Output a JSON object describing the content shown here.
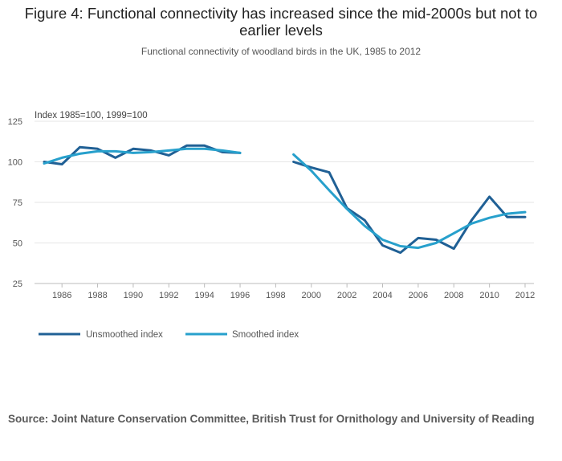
{
  "title": "Figure 4: Functional connectivity has increased since the mid-2000s but not to earlier levels",
  "subtitle": "Functional connectivity of woodland birds in the UK, 1985 to 2012",
  "source": "Source: Joint Nature Conservation Committee, British Trust for Ornithology and University of Reading",
  "colors": {
    "unsmoothed": "#206095",
    "smoothed": "#27A0CC",
    "grid": "#e6e6e6",
    "axis": "#bbbbbb"
  },
  "chart_data": {
    "type": "line",
    "ylabel": "Index 1985=100, 1999=100",
    "xlabel": "",
    "xlim": [
      1985,
      2012
    ],
    "ylim": [
      25,
      125
    ],
    "yticks": [
      25,
      50,
      75,
      100,
      125
    ],
    "xticks": [
      1986,
      1988,
      1990,
      1992,
      1994,
      1996,
      1998,
      2000,
      2002,
      2004,
      2006,
      2008,
      2010,
      2012
    ],
    "legend_position": "bottom-left",
    "series": [
      {
        "name": "Unsmoothed index",
        "x": [
          1985,
          1986,
          1987,
          1988,
          1989,
          1990,
          1991,
          1992,
          1993,
          1994,
          1995,
          1996,
          1999,
          2000,
          2001,
          2002,
          2003,
          2004,
          2005,
          2006,
          2007,
          2008,
          2009,
          2010,
          2011,
          2012
        ],
        "values": [
          100,
          98.5,
          109,
          108,
          102.5,
          108,
          107,
          104,
          110,
          110,
          106,
          105.5,
          100,
          96.5,
          93.5,
          71.5,
          64,
          48.5,
          44,
          53,
          52,
          46.5,
          64,
          78.5,
          66,
          66
        ]
      },
      {
        "name": "Smoothed index",
        "x": [
          1985,
          1986,
          1987,
          1988,
          1989,
          1990,
          1991,
          1992,
          1993,
          1994,
          1995,
          1996,
          1999,
          2000,
          2001,
          2002,
          2003,
          2004,
          2005,
          2006,
          2007,
          2008,
          2009,
          2010,
          2011,
          2012
        ],
        "values": [
          99,
          102.5,
          105,
          106.5,
          106.5,
          105.5,
          106,
          107,
          108,
          108,
          107,
          105.5,
          104.5,
          94.5,
          82.5,
          71,
          60.5,
          52,
          48,
          47,
          50,
          56,
          62,
          65.5,
          68,
          69
        ]
      }
    ]
  }
}
